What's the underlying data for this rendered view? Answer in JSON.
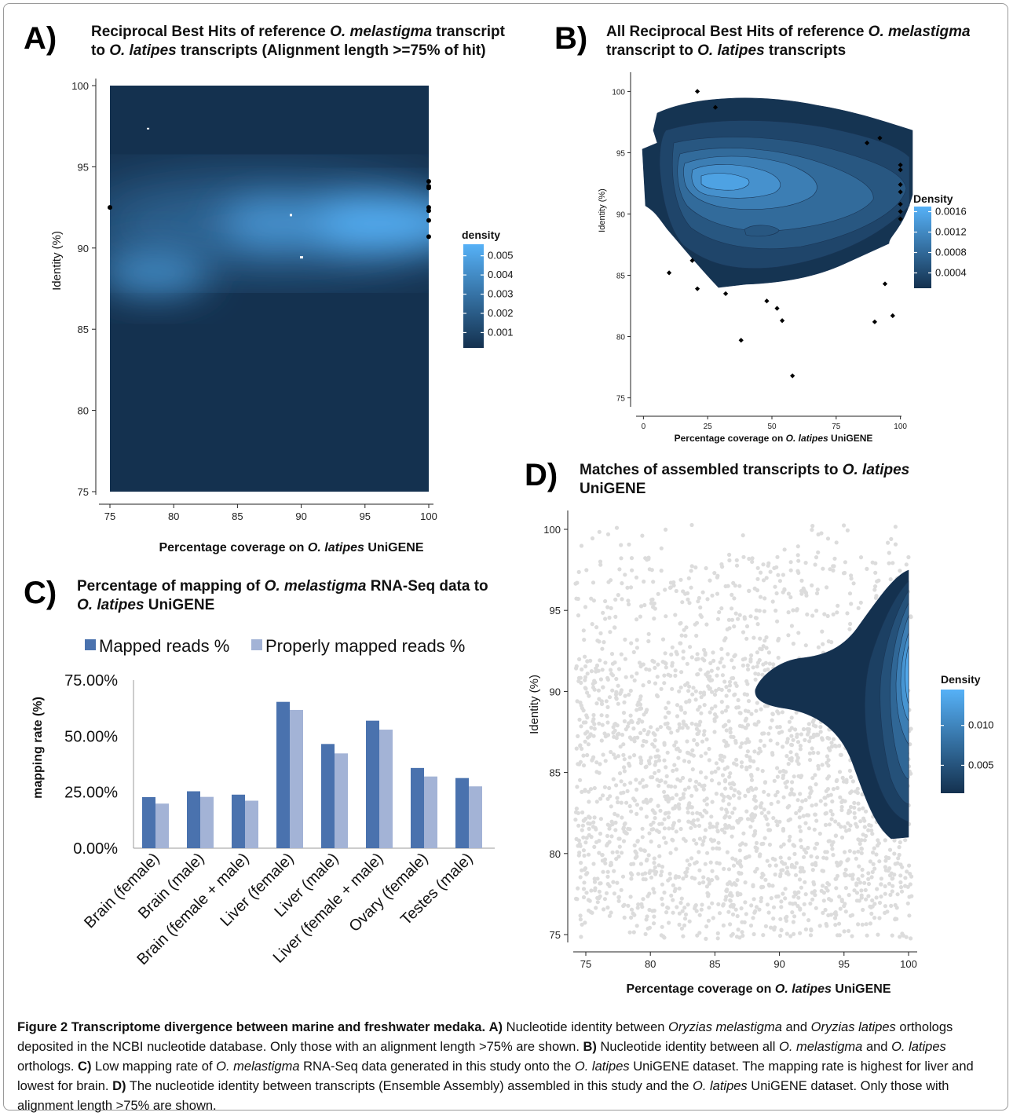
{
  "colors": {
    "dark_blue": "#14314f",
    "light_blue": "#56b1f7",
    "bar_mapped": "#4a72ae",
    "bar_proper": "#a3b3d6",
    "scatter_grey": "#dcdcdc"
  },
  "panels": {
    "A": {
      "label": "A)",
      "title_line1": [
        "Reciprocal Best Hits of reference ",
        "O. melastigma",
        " transcript"
      ],
      "title_line2": [
        "to ",
        "O. latipes",
        " transcripts (Alignment length >=75% of hit)"
      ],
      "xlabel": [
        "Percentage coverage on ",
        "O. latipes",
        " UniGENE"
      ],
      "ylabel": "Identity (%)",
      "legend_title": "density"
    },
    "B": {
      "label": "B)",
      "title_line1": [
        "All Reciprocal Best Hits of reference ",
        "O. melastigma",
        ""
      ],
      "title_line2": [
        "transcript to ",
        "O. latipes",
        " transcripts"
      ],
      "xlabel": [
        "Percentage coverage on ",
        "O. latipes",
        " UniGENE"
      ],
      "ylabel": "Identity (%)",
      "legend_title": "Density"
    },
    "C": {
      "label": "C)",
      "title_line1": [
        "Percentage of mapping of ",
        "O. melastigma",
        " RNA-Seq data to"
      ],
      "title_line2": [
        "",
        "O. latipes",
        " UniGENE"
      ],
      "ylabel": "mapping rate (%)"
    },
    "D": {
      "label": "D)",
      "title_line1": [
        "Matches of assembled transcripts to ",
        "O. latipes",
        ""
      ],
      "title_line2": [
        "UniGENE",
        "",
        ""
      ],
      "xlabel": [
        "Percentage coverage on ",
        "O. latipes",
        " UniGENE"
      ],
      "ylabel": "Identity (%)",
      "legend_title": "Density"
    }
  },
  "chart_data": [
    {
      "panel": "A",
      "type": "heatmap",
      "title": "Reciprocal Best Hits of reference O. melastigma transcript to O. latipes transcripts (Alignment length >=75% of hit)",
      "xlabel": "Percentage coverage on O. latipes UniGENE",
      "ylabel": "Identity (%)",
      "xlim": [
        75,
        100
      ],
      "ylim": [
        75,
        100
      ],
      "xticks": [
        75,
        80,
        85,
        90,
        95,
        100
      ],
      "yticks": [
        75,
        80,
        85,
        90,
        95,
        100
      ],
      "density_peaks": [
        {
          "x": 96,
          "y": 91.5,
          "density": 0.0055
        },
        {
          "x": 78.5,
          "y": 88.5,
          "density": 0.004
        },
        {
          "x": 88,
          "y": 91.5,
          "density": 0.0045
        }
      ],
      "colorbar": {
        "title": "density",
        "ticks": [
          0.001,
          0.002,
          0.003,
          0.004,
          0.005
        ],
        "labels": [
          "0.001",
          "0.002",
          "0.003",
          "0.004",
          "0.005"
        ],
        "range": [
          0.0002,
          0.0056
        ]
      },
      "points": [
        [
          100,
          94.1
        ],
        [
          100,
          93.8
        ],
        [
          100,
          93.7
        ],
        [
          100,
          92.5
        ],
        [
          100,
          92.3
        ],
        [
          100,
          91.7
        ],
        [
          100,
          90.7
        ],
        [
          75,
          92.5
        ]
      ],
      "grid": false
    },
    {
      "panel": "B",
      "type": "contour",
      "title": "All Reciprocal Best Hits of reference O. melastigma transcript to O. latipes transcripts",
      "xlabel": "Percentage coverage on O. latipes UniGENE",
      "ylabel": "Identity (%)",
      "xlim": [
        -5,
        105
      ],
      "ylim": [
        73.5,
        101.5
      ],
      "xticks": [
        0,
        25,
        50,
        75,
        100
      ],
      "yticks": [
        75,
        80,
        85,
        90,
        95,
        100
      ],
      "density_peak": {
        "x": 32,
        "y": 92,
        "density": 0.0016
      },
      "colorbar": {
        "title": "Density",
        "ticks": [
          0.0004,
          0.0008,
          0.0012,
          0.0016
        ],
        "labels": [
          "0.0004",
          "0.0008",
          "0.0012",
          "0.0016"
        ],
        "range": [
          0.0001,
          0.0017
        ]
      },
      "points": [
        [
          21,
          100
        ],
        [
          28,
          98.7
        ],
        [
          92,
          96.2
        ],
        [
          87,
          95.8
        ],
        [
          100,
          94
        ],
        [
          100,
          93.6
        ],
        [
          100,
          92.4
        ],
        [
          100,
          91.8
        ],
        [
          100,
          90.8
        ],
        [
          100,
          90.2
        ],
        [
          100,
          89.6
        ],
        [
          10,
          85.2
        ],
        [
          19,
          86.2
        ],
        [
          21,
          83.9
        ],
        [
          32,
          83.5
        ],
        [
          48,
          82.9
        ],
        [
          52,
          82.3
        ],
        [
          54,
          81.3
        ],
        [
          38,
          79.7
        ],
        [
          94,
          84.3
        ],
        [
          97,
          81.7
        ],
        [
          90,
          81.2
        ],
        [
          58,
          76.8
        ]
      ],
      "grid": false
    },
    {
      "panel": "C",
      "type": "bar",
      "title": "Percentage of mapping of O. melastigma RNA-Seq data to O. latipes UniGENE",
      "ylabel": "mapping rate (%)",
      "ylim": [
        0,
        75
      ],
      "yticks": [
        0,
        25,
        50,
        75
      ],
      "ytick_labels": [
        "0.00%",
        "25.00%",
        "50.00%",
        "75.00%"
      ],
      "categories": [
        "Brain (female)",
        "Brain (male)",
        "Brain (female + male)",
        "Liver (female)",
        "Liver (male)",
        "Liver (female + male)",
        "Ovary (female)",
        "Testes (male)"
      ],
      "series": [
        {
          "name": "Mapped reads %",
          "values": [
            22.8,
            25.4,
            23.9,
            65.3,
            46.5,
            56.9,
            35.8,
            31.3
          ]
        },
        {
          "name": "Properly mapped reads %",
          "values": [
            19.9,
            22.9,
            21.2,
            61.7,
            42.3,
            52.9,
            32.0,
            27.6
          ]
        }
      ],
      "legend_position": "top",
      "grid": false
    },
    {
      "panel": "D",
      "type": "scatter",
      "title": "Matches of assembled transcripts to O. latipes UniGENE",
      "xlabel": "Percentage coverage on O. latipes UniGENE",
      "ylabel": "Identity (%)",
      "xlim": [
        74,
        100.5
      ],
      "ylim": [
        74,
        101
      ],
      "xticks": [
        75,
        80,
        85,
        90,
        95,
        100
      ],
      "yticks": [
        75,
        80,
        85,
        90,
        95,
        100
      ],
      "density_peak": {
        "x": 100,
        "y": 92.5,
        "density": 0.014
      },
      "colorbar": {
        "title": "Density",
        "ticks": [
          0.005,
          0.01
        ],
        "labels": [
          "0.005",
          "0.010"
        ],
        "range": [
          0.0015,
          0.0145
        ]
      },
      "grid": false
    }
  ],
  "caption": {
    "lead": "Figure 2 Transcriptome divergence between marine and freshwater medaka.",
    "a_label": "A)",
    "a_text1": " Nucleotide identity between ",
    "a_species1": "Oryzias melastigma",
    "a_text2": " and ",
    "a_species2": "Oryzias latipes",
    "a_text3": " orthologs deposited in the NCBI nucleotide database. Only those with an alignment length >75% are shown. ",
    "b_label": "B)",
    "b_text1": " Nucleotide identity between all ",
    "b_species1": "O. melastigma",
    "b_text2": " and ",
    "b_species2": "O. latipes",
    "b_text3": " orthologs. ",
    "c_label": "C)",
    "c_text1": " Low mapping rate of ",
    "c_species1": "O. melastigma",
    "c_text2": " RNA-Seq data generated in this study onto the ",
    "c_species2": "O. latipes",
    "c_text3": " UniGENE dataset. The mapping rate is highest for liver and lowest for brain. ",
    "d_label": "D)",
    "d_text1": " The nucleotide identity between transcripts (Ensemble Assembly) assembled in this study and the ",
    "d_species1": "O. latipes",
    "d_text2": " UniGENE dataset. Only those with alignment length >75% are shown."
  }
}
